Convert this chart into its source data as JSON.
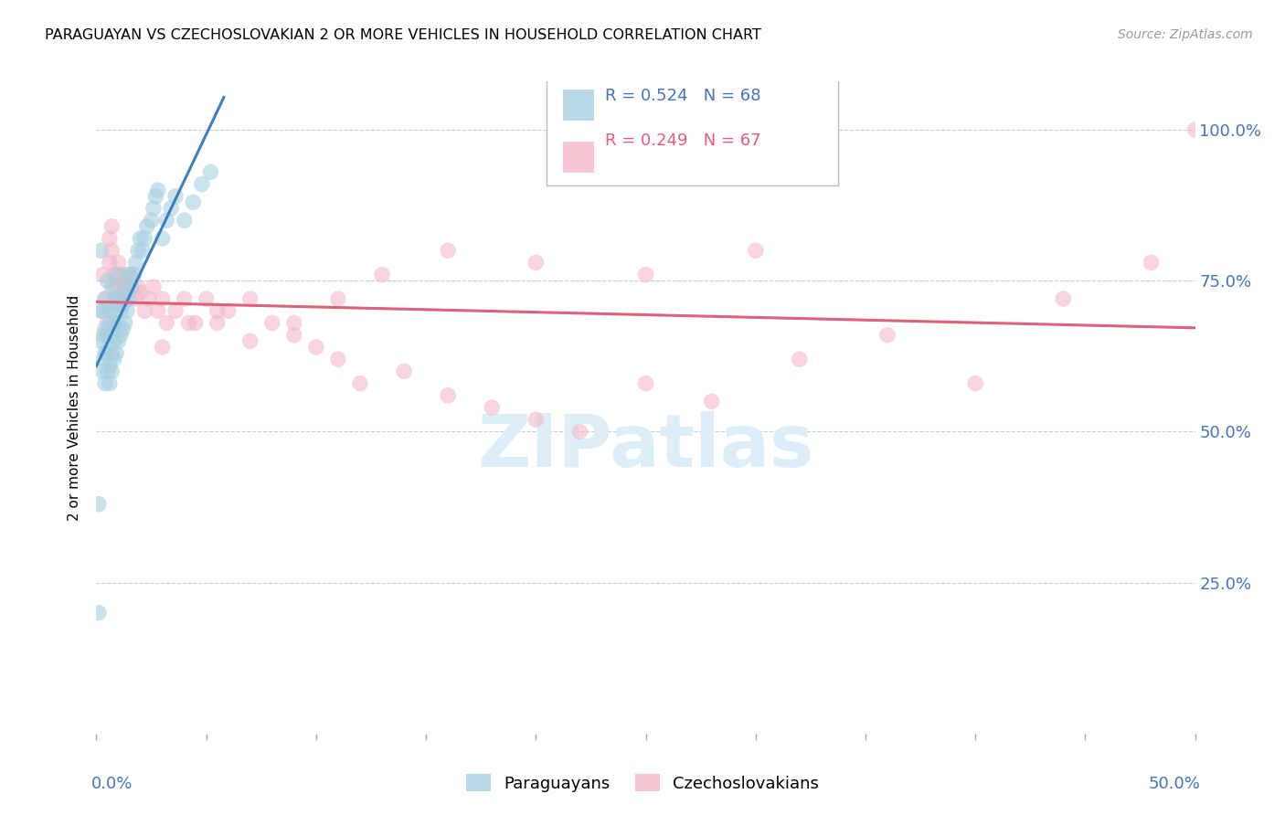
{
  "title": "PARAGUAYAN VS CZECHOSLOVAKIAN 2 OR MORE VEHICLES IN HOUSEHOLD CORRELATION CHART",
  "source": "Source: ZipAtlas.com",
  "ylabel": "2 or more Vehicles in Household",
  "ytick_labels": [
    "25.0%",
    "50.0%",
    "75.0%",
    "100.0%"
  ],
  "ytick_values": [
    0.25,
    0.5,
    0.75,
    1.0
  ],
  "xmin": 0.0,
  "xmax": 0.5,
  "ymin": 0.0,
  "ymax": 1.08,
  "legend_r_blue": "R = 0.524",
  "legend_n_blue": "N = 68",
  "legend_r_pink": "R = 0.249",
  "legend_n_pink": "N = 67",
  "legend_label_blue": "Paraguayans",
  "legend_label_pink": "Czechoslovakians",
  "blue_scatter_color": "#a8cfe0",
  "pink_scatter_color": "#f4b8c8",
  "blue_line_color": "#3a7fbf",
  "pink_line_color": "#e0607a",
  "watermark_color": "#ddeef8",
  "paraguayan_x": [
    0.001,
    0.001,
    0.002,
    0.002,
    0.002,
    0.003,
    0.003,
    0.003,
    0.003,
    0.004,
    0.004,
    0.004,
    0.004,
    0.005,
    0.005,
    0.005,
    0.005,
    0.005,
    0.006,
    0.006,
    0.006,
    0.006,
    0.007,
    0.007,
    0.007,
    0.007,
    0.007,
    0.008,
    0.008,
    0.008,
    0.008,
    0.009,
    0.009,
    0.009,
    0.01,
    0.01,
    0.01,
    0.01,
    0.011,
    0.011,
    0.012,
    0.012,
    0.013,
    0.013,
    0.014,
    0.014,
    0.015,
    0.015,
    0.016,
    0.017,
    0.018,
    0.019,
    0.02,
    0.021,
    0.022,
    0.023,
    0.025,
    0.026,
    0.027,
    0.028,
    0.03,
    0.032,
    0.034,
    0.036,
    0.04,
    0.044,
    0.048,
    0.052
  ],
  "paraguayan_y": [
    0.38,
    0.2,
    0.65,
    0.7,
    0.8,
    0.6,
    0.62,
    0.66,
    0.7,
    0.58,
    0.63,
    0.67,
    0.72,
    0.6,
    0.63,
    0.66,
    0.7,
    0.75,
    0.58,
    0.61,
    0.64,
    0.68,
    0.6,
    0.63,
    0.66,
    0.7,
    0.74,
    0.62,
    0.65,
    0.68,
    0.72,
    0.63,
    0.67,
    0.71,
    0.65,
    0.68,
    0.72,
    0.76,
    0.66,
    0.7,
    0.67,
    0.71,
    0.68,
    0.72,
    0.7,
    0.74,
    0.72,
    0.76,
    0.74,
    0.76,
    0.78,
    0.8,
    0.82,
    0.8,
    0.82,
    0.84,
    0.85,
    0.87,
    0.89,
    0.9,
    0.82,
    0.85,
    0.87,
    0.89,
    0.85,
    0.88,
    0.91,
    0.93
  ],
  "czechoslovakian_x": [
    0.003,
    0.004,
    0.005,
    0.006,
    0.006,
    0.007,
    0.007,
    0.008,
    0.008,
    0.009,
    0.009,
    0.01,
    0.01,
    0.011,
    0.012,
    0.012,
    0.013,
    0.014,
    0.014,
    0.015,
    0.016,
    0.017,
    0.018,
    0.019,
    0.02,
    0.022,
    0.024,
    0.026,
    0.028,
    0.03,
    0.032,
    0.036,
    0.04,
    0.045,
    0.05,
    0.055,
    0.06,
    0.07,
    0.08,
    0.09,
    0.1,
    0.11,
    0.12,
    0.14,
    0.16,
    0.18,
    0.2,
    0.22,
    0.25,
    0.28,
    0.32,
    0.36,
    0.4,
    0.44,
    0.48,
    0.5,
    0.3,
    0.25,
    0.2,
    0.16,
    0.13,
    0.11,
    0.09,
    0.07,
    0.055,
    0.042,
    0.03
  ],
  "czechoslovakian_y": [
    0.76,
    0.72,
    0.68,
    0.82,
    0.78,
    0.84,
    0.8,
    0.76,
    0.74,
    0.72,
    0.76,
    0.74,
    0.78,
    0.75,
    0.76,
    0.72,
    0.74,
    0.76,
    0.73,
    0.75,
    0.74,
    0.76,
    0.72,
    0.74,
    0.73,
    0.7,
    0.72,
    0.74,
    0.7,
    0.72,
    0.68,
    0.7,
    0.72,
    0.68,
    0.72,
    0.68,
    0.7,
    0.65,
    0.68,
    0.66,
    0.64,
    0.62,
    0.58,
    0.6,
    0.56,
    0.54,
    0.52,
    0.5,
    0.58,
    0.55,
    0.62,
    0.66,
    0.58,
    0.72,
    0.78,
    1.0,
    0.8,
    0.76,
    0.78,
    0.8,
    0.76,
    0.72,
    0.68,
    0.72,
    0.7,
    0.68,
    0.64
  ]
}
